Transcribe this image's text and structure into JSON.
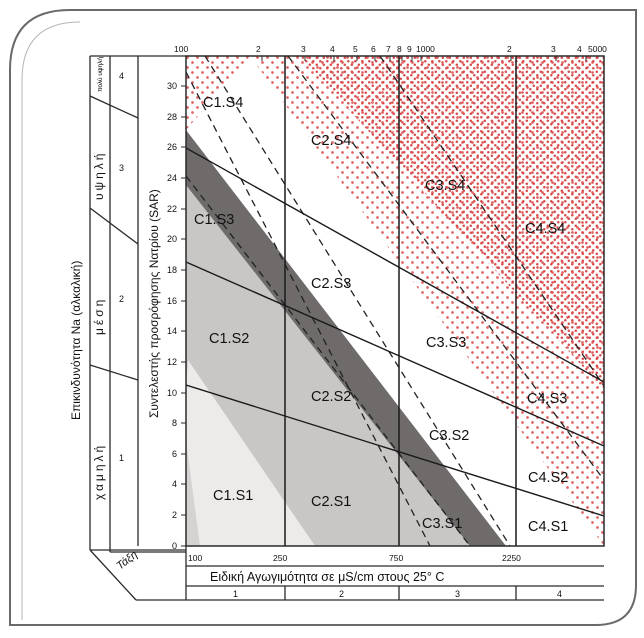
{
  "x_axis": {
    "title": "Ειδική Αγωγιμότητα σε μS/cm στους 25° C",
    "top_ticks": [
      "100",
      "2",
      "3",
      "4",
      "5",
      "6",
      "7",
      "8",
      "9",
      "1000",
      "2",
      "3",
      "4",
      "5000"
    ],
    "bottom_ticks": [
      "100",
      "250",
      "750",
      "2250"
    ],
    "class_caption": "Τάξη",
    "classes": [
      "1",
      "2",
      "3",
      "4"
    ]
  },
  "y_axis": {
    "title": "Συντελεστής προσρόφησης Νατρίου (SAR)",
    "ticks": [
      "0",
      "2",
      "4",
      "6",
      "8",
      "10",
      "12",
      "14",
      "16",
      "18",
      "20",
      "22",
      "24",
      "26",
      "28",
      "30"
    ]
  },
  "hazard_axis": {
    "title": "Επικινδυνότητα Na (αλκαλική)",
    "classes": [
      {
        "label": "χαμηλή",
        "number": "1"
      },
      {
        "label": "μέση",
        "number": "2"
      },
      {
        "label": "υψηλή",
        "number": "3"
      },
      {
        "label": "πολύ υψηλή",
        "number": "4"
      }
    ]
  },
  "zones": [
    "C1.S4",
    "C2.S4",
    "C3.S4",
    "C4.S4",
    "C1.S3",
    "C2.S3",
    "C3.S3",
    "C4.S3",
    "C1.S2",
    "C2.S2",
    "C3.S2",
    "C4.S2",
    "C1.S1",
    "C2.S1",
    "C3.S1",
    "C4.S1"
  ],
  "colors": {
    "frame": "#2a2a2a",
    "dark_band": "#6f6b6b",
    "light_band": "#c9c7c6",
    "dots": "#e06060",
    "dense_dots": "#d84b4b",
    "page_border": "#6a6a6a"
  }
}
